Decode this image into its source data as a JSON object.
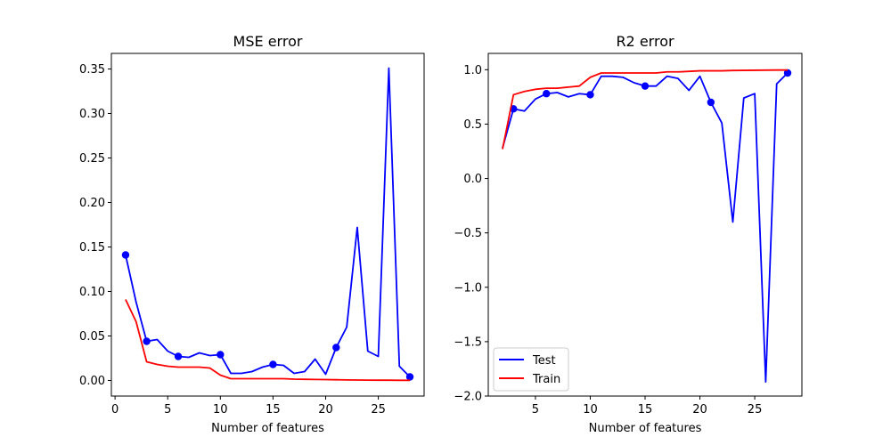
{
  "chart_data": [
    {
      "type": "line",
      "title": "MSE error",
      "xlabel": "Number of features",
      "ylabel": "",
      "xlim": [
        -0.35,
        29.35
      ],
      "ylim": [
        -0.0175,
        0.3675
      ],
      "xticks": [
        0,
        5,
        10,
        15,
        20,
        25
      ],
      "yticks": [
        0.0,
        0.05,
        0.1,
        0.15,
        0.2,
        0.25,
        0.3,
        0.35
      ],
      "ytick_labels": [
        "0.00",
        "0.05",
        "0.10",
        "0.15",
        "0.20",
        "0.25",
        "0.30",
        "0.35"
      ],
      "legend": null,
      "series": [
        {
          "color": "#0000ff",
          "x": [
            1,
            2,
            3,
            4,
            5,
            6,
            7,
            8,
            9,
            10,
            11,
            12,
            13,
            14,
            15,
            16,
            17,
            18,
            19,
            20,
            21,
            22,
            23,
            24,
            25,
            26,
            27,
            28
          ],
          "y": [
            0.141,
            0.088,
            0.044,
            0.046,
            0.033,
            0.027,
            0.026,
            0.031,
            0.028,
            0.029,
            0.008,
            0.008,
            0.01,
            0.015,
            0.018,
            0.017,
            0.008,
            0.01,
            0.024,
            0.007,
            0.037,
            0.06,
            0.172,
            0.033,
            0.027,
            0.351,
            0.016,
            0.004
          ],
          "markers_x": [
            1,
            3,
            6,
            10,
            15,
            21,
            28
          ],
          "markers_y": [
            0.141,
            0.044,
            0.027,
            0.029,
            0.018,
            0.037,
            0.004
          ]
        },
        {
          "color": "#ff0000",
          "x": [
            1,
            2,
            3,
            4,
            5,
            6,
            7,
            8,
            9,
            10,
            11,
            12,
            13,
            14,
            15,
            16,
            17,
            18,
            19,
            20,
            21,
            22,
            23,
            24,
            25,
            26,
            27,
            28
          ],
          "y": [
            0.091,
            0.066,
            0.021,
            0.018,
            0.016,
            0.015,
            0.015,
            0.015,
            0.014,
            0.006,
            0.002,
            0.002,
            0.002,
            0.002,
            0.002,
            0.002,
            0.0015,
            0.0013,
            0.0011,
            0.001,
            0.0008,
            0.0006,
            0.0005,
            0.0004,
            0.0003,
            0.0003,
            0.0002,
            0.0002
          ]
        }
      ]
    },
    {
      "type": "line",
      "title": "R2 error",
      "xlabel": "Number of features",
      "ylabel": "",
      "xlim": [
        0.7,
        29.3
      ],
      "ylim": [
        -2.0,
        1.15
      ],
      "xticks": [
        5,
        10,
        15,
        20,
        25
      ],
      "yticks": [
        1.0,
        0.5,
        0.0,
        -0.5,
        -1.0,
        -1.5,
        -2.0
      ],
      "ytick_labels": [
        "1.0",
        "0.5",
        "0.0",
        "−0.5",
        "−1.0",
        "−1.5",
        "−2.0"
      ],
      "legend": "lower-left",
      "series": [
        {
          "name": "Test",
          "color": "#0000ff",
          "x": [
            2,
            3,
            4,
            5,
            6,
            7,
            8,
            9,
            10,
            11,
            12,
            13,
            14,
            15,
            16,
            17,
            18,
            19,
            20,
            21,
            22,
            23,
            24,
            25,
            26,
            27,
            28
          ],
          "y": [
            0.28,
            0.64,
            0.62,
            0.73,
            0.78,
            0.79,
            0.75,
            0.78,
            0.77,
            0.94,
            0.94,
            0.93,
            0.88,
            0.85,
            0.85,
            0.94,
            0.92,
            0.81,
            0.94,
            0.7,
            0.51,
            -0.4,
            0.74,
            0.78,
            -1.87,
            0.87,
            0.97
          ],
          "markers_x": [
            3,
            6,
            10,
            15,
            21,
            28
          ],
          "markers_y": [
            0.64,
            0.78,
            0.77,
            0.85,
            0.7,
            0.97
          ]
        },
        {
          "name": "Train",
          "color": "#ff0000",
          "x": [
            2,
            3,
            4,
            5,
            6,
            7,
            8,
            9,
            10,
            11,
            12,
            13,
            14,
            15,
            16,
            17,
            18,
            19,
            20,
            21,
            22,
            23,
            24,
            25,
            26,
            27,
            28
          ],
          "y": [
            0.27,
            0.77,
            0.8,
            0.82,
            0.83,
            0.83,
            0.84,
            0.85,
            0.93,
            0.97,
            0.97,
            0.97,
            0.97,
            0.97,
            0.97,
            0.98,
            0.98,
            0.985,
            0.99,
            0.99,
            0.99,
            0.993,
            0.994,
            0.995,
            0.996,
            0.997,
            0.997
          ]
        }
      ]
    }
  ]
}
